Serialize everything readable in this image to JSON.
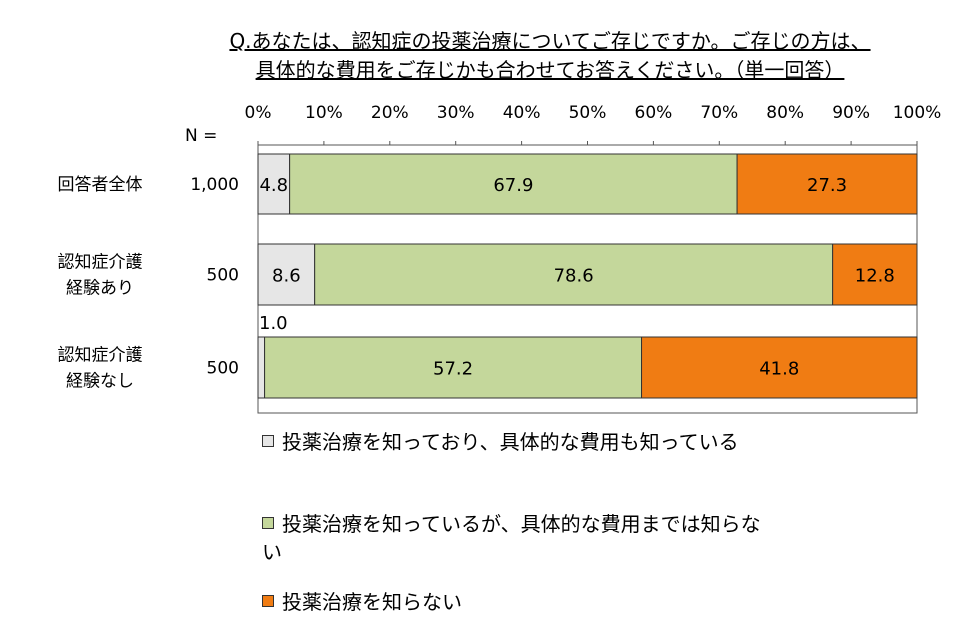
{
  "chart_data": {
    "type": "bar",
    "orientation": "horizontal",
    "stacked": true,
    "title_lines": [
      "Q.あなたは、認知症の投薬治療についてご存じですか。ご存じの方は、",
      "具体的な費用をご存じかも合わせてお答えください。（単一回答）"
    ],
    "n_header": "N =",
    "categories": [
      [
        "回答者全体"
      ],
      [
        "認知症介護",
        "経験あり"
      ],
      [
        "認知症介護",
        "経験なし"
      ]
    ],
    "n_values": [
      "1,000",
      "500",
      "500"
    ],
    "x_ticks": [
      "0%",
      "10%",
      "20%",
      "30%",
      "40%",
      "50%",
      "60%",
      "70%",
      "80%",
      "90%",
      "100%"
    ],
    "xlim": [
      0,
      100
    ],
    "series": [
      {
        "name": "投薬治療を知っており、具体的な費用も知っている",
        "color": "#e6e6e6",
        "values": [
          4.8,
          8.6,
          1.0
        ],
        "labels": [
          "4.8",
          "8.6",
          "1.0"
        ]
      },
      {
        "name": "投薬治療を知っているが、具体的な費用までは知らない",
        "color": "#c4d79b",
        "values": [
          67.9,
          78.6,
          57.2
        ],
        "labels": [
          "67.9",
          "78.6",
          "57.2"
        ]
      },
      {
        "name": "投薬治療を知らない",
        "color": "#f07c13",
        "values": [
          27.3,
          12.8,
          41.8
        ],
        "labels": [
          "27.3",
          "12.8",
          "41.8"
        ]
      }
    ],
    "legend_position": "bottom"
  },
  "legend": {
    "items": [
      {
        "lines": [
          "投薬治療を知っており、具体的な費用も知っている"
        ]
      },
      {
        "lines": [
          "投薬治療を知っているが、具体的な費用までは知らな",
          "い"
        ]
      },
      {
        "lines": [
          "投薬治療を知らない"
        ]
      }
    ]
  }
}
